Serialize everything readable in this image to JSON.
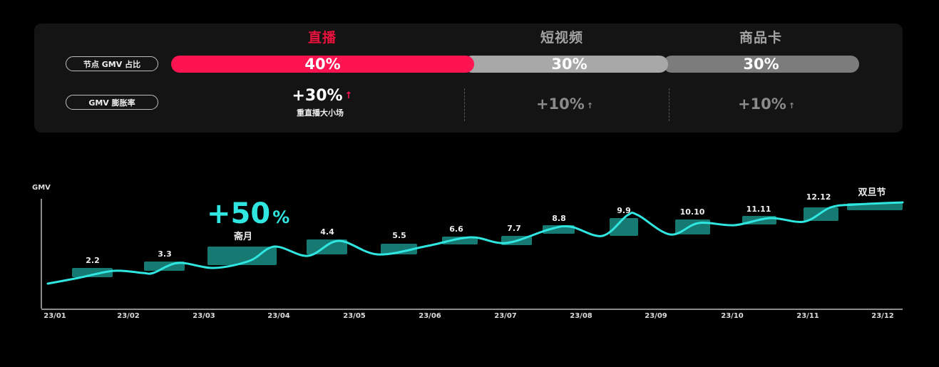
{
  "panel": {
    "row_labels": [
      "节点 GMV 占比",
      "GMV 膨胀率"
    ],
    "columns": [
      {
        "name": "直播",
        "share": "40%",
        "share_value": 40,
        "growth": "+30%",
        "growth_note": "重直播大小场",
        "header_color": "#e8123d",
        "bar_color": "#fe1451",
        "arrow_color": "#fe1451",
        "growth_color": "#ffffff"
      },
      {
        "name": "短视频",
        "share": "30%",
        "share_value": 30,
        "growth": "+10%",
        "growth_note": "",
        "header_color": "#a3a3a3",
        "bar_color": "#a8a8a8",
        "arrow_color": "#8a8a8a",
        "growth_color": "#8a8a8a"
      },
      {
        "name": "商品卡",
        "share": "30%",
        "share_value": 30,
        "growth": "+10%",
        "growth_note": "",
        "header_color": "#a3a3a3",
        "bar_color": "#7c7c7c",
        "arrow_color": "#8a8a8a",
        "growth_color": "#8a8a8a"
      }
    ],
    "arrow_icon": "↑"
  },
  "chart_data": {
    "type": "line",
    "title": "",
    "ylabel": "GMV",
    "xlabel": "",
    "categories": [
      "23/01",
      "23/02",
      "23/03",
      "23/04",
      "23/05",
      "23/06",
      "23/07",
      "23/08",
      "23/09",
      "23/10",
      "23/11",
      "23/12"
    ],
    "series": [
      {
        "name": "GMV",
        "color": "#2fe6e0",
        "note": "smooth upward trend with bumps at promotional events (relative, unitless)",
        "values_relative": [
          0.05,
          0.28,
          0.34,
          0.62,
          0.44,
          0.55,
          0.6,
          0.72,
          0.64,
          0.7,
          0.74,
          1.0
        ]
      }
    ],
    "events": [
      {
        "label": "2.2",
        "start": "23/01",
        "end": "23/02"
      },
      {
        "label": "3.3",
        "start": "23/02",
        "end": "23/03"
      },
      {
        "label": "斋月",
        "start": "23/03",
        "end": "23/04",
        "highlight": "+50%"
      },
      {
        "label": "4.4",
        "start": "23/04",
        "end": "23/05"
      },
      {
        "label": "5.5",
        "start": "23/05",
        "end": "23/06"
      },
      {
        "label": "6.6",
        "start": "23/06",
        "end": "23/07"
      },
      {
        "label": "7.7",
        "start": "23/07",
        "end": "23/08"
      },
      {
        "label": "8.8",
        "start": "23/08",
        "end": "23/09"
      },
      {
        "label": "9.9",
        "start": "23/08",
        "end": "23/09"
      },
      {
        "label": "10.10",
        "start": "23/09",
        "end": "23/10"
      },
      {
        "label": "11.11",
        "start": "23/10",
        "end": "23/11"
      },
      {
        "label": "12.12",
        "start": "23/11",
        "end": "23/12"
      },
      {
        "label": "双旦节",
        "start": "23/12",
        "end": "23/12"
      }
    ],
    "highlight_annotation": {
      "text": "+50",
      "suffix": "%",
      "color": "#2fe6e0"
    },
    "event_box_color": "#167a73",
    "grid": false,
    "legend": "none"
  }
}
